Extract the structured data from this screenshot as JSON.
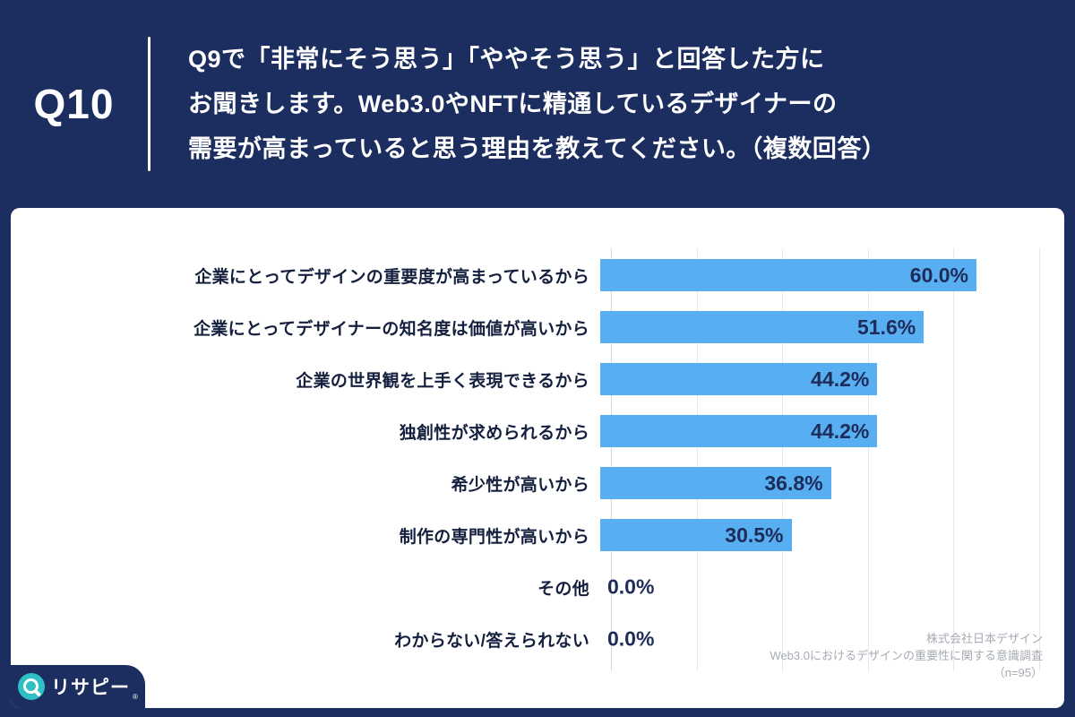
{
  "header": {
    "q_label": "Q10",
    "question_lines": [
      "Q9で「非常にそう思う」「ややそう思う」と回答した方に",
      "お聞きします。Web3.0やNFTに精通しているデザイナーの",
      "需要が高まっていると思う理由を教えてください。（複数回答）"
    ]
  },
  "chart_data": {
    "type": "bar",
    "orientation": "horizontal",
    "categories": [
      "企業にとってデザインの重要度が高まっているから",
      "企業にとってデザイナーの知名度は価値が高いから",
      "企業の世界観を上手く表現できるから",
      "独創性が求められるから",
      "希少性が高いから",
      "制作の専門性が高いから",
      "その他",
      "わからない/答えられない"
    ],
    "values": [
      60.0,
      51.6,
      44.2,
      44.2,
      36.8,
      30.5,
      0.0,
      0.0
    ],
    "value_labels": [
      "60.0%",
      "51.6%",
      "44.2%",
      "44.2%",
      "36.8%",
      "30.5%",
      "0.0%",
      "0.0%"
    ],
    "xlim": [
      0,
      70
    ],
    "grid": true,
    "bar_color": "#57AEF0",
    "value_color": "#1E2C5A"
  },
  "footer": {
    "source_lines": [
      "株式会社日本デザイン",
      "Web3.0におけるデザインの重要性に関する意識調査",
      "（n=95）"
    ]
  },
  "logo": {
    "text": "リサピー",
    "reg": "®",
    "teal": "#2FBFC4"
  }
}
